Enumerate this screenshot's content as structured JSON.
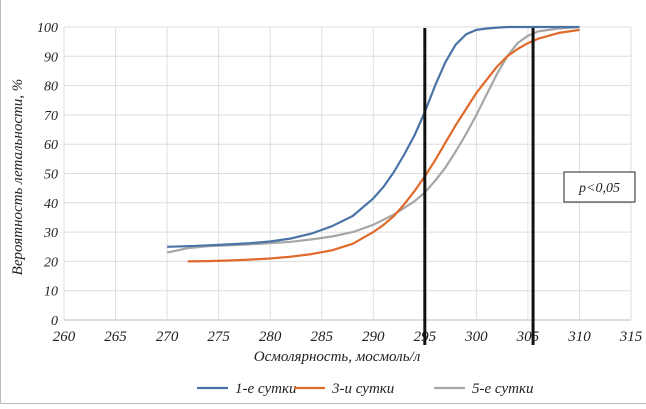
{
  "chart_data": {
    "type": "line",
    "xlabel": "Осмолярность, мосмоль/л",
    "ylabel": "Вероятность летальности, %",
    "xlim": [
      260,
      315
    ],
    "ylim": [
      0,
      100
    ],
    "x_ticks": [
      "260",
      "265",
      "270",
      "275",
      "280",
      "285",
      "290",
      "295",
      "300",
      "305",
      "310",
      "315"
    ],
    "y_ticks": [
      "0",
      "10",
      "20",
      "30",
      "40",
      "50",
      "60",
      "70",
      "80",
      "90",
      "100"
    ],
    "grid": true,
    "legend_position": "bottom",
    "series": [
      {
        "name": "1-е сутки",
        "color": "#4a74a8",
        "x": [
          270,
          272,
          274,
          276,
          278,
          280,
          282,
          284,
          286,
          288,
          290,
          291,
          292,
          293,
          294,
          295,
          296,
          297,
          298,
          299,
          300,
          301,
          302,
          303,
          304,
          305,
          306,
          308,
          310
        ],
        "y": [
          25,
          25.2,
          25.5,
          25.8,
          26.2,
          26.8,
          27.8,
          29.5,
          32,
          35.5,
          41.5,
          45.5,
          50.5,
          56.5,
          63,
          71,
          80,
          88,
          94,
          97.5,
          99,
          99.5,
          99.8,
          100,
          100,
          100,
          100,
          100,
          100
        ]
      },
      {
        "name": "3-и сутки",
        "color": "#e06a2b",
        "x": [
          272,
          274,
          276,
          278,
          280,
          282,
          284,
          286,
          288,
          290,
          291,
          292,
          293,
          294,
          295,
          296,
          297,
          298,
          299,
          300,
          301,
          302,
          303,
          304,
          305,
          306,
          308,
          310
        ],
        "y": [
          20,
          20.1,
          20.3,
          20.6,
          21,
          21.6,
          22.5,
          23.8,
          26,
          30,
          32.5,
          35.5,
          39.5,
          44,
          49,
          54.5,
          60.5,
          66.5,
          72,
          77.5,
          82,
          86.5,
          90,
          92.5,
          94.5,
          96,
          98,
          99
        ]
      },
      {
        "name": "5-е сутки",
        "color": "#a6a6a6",
        "x": [
          270,
          272,
          274,
          276,
          278,
          280,
          282,
          284,
          286,
          288,
          290,
          292,
          294,
          295,
          296,
          297,
          298,
          299,
          300,
          301,
          302,
          303,
          304,
          305,
          306,
          308,
          310
        ],
        "y": [
          23,
          24.5,
          25.2,
          25.5,
          25.8,
          26.2,
          26.7,
          27.5,
          28.5,
          30,
          32.5,
          36,
          40.5,
          43.5,
          47.5,
          52,
          57.5,
          63.5,
          70,
          77,
          84,
          90,
          94.5,
          97,
          98.5,
          99.5,
          100
        ]
      }
    ],
    "vertical_lines": [
      295,
      305.5
    ],
    "annotation": "p<0,05"
  }
}
